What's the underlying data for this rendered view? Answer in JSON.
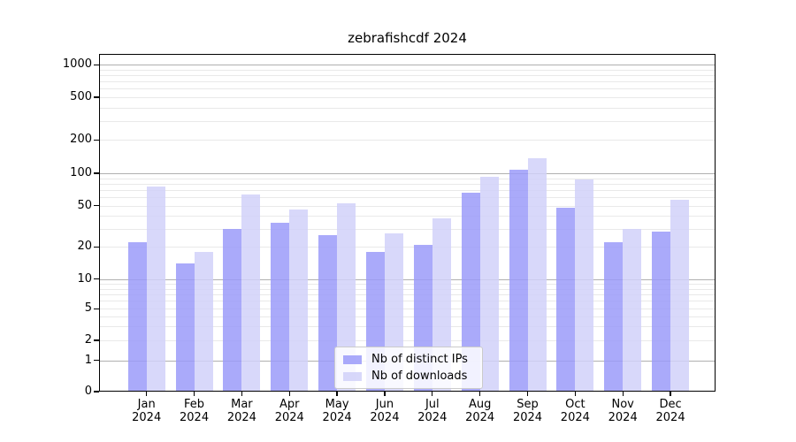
{
  "chart_data": {
    "type": "bar",
    "title": "zebrafishcdf 2024",
    "categories": [
      "Jan 2024",
      "Feb 2024",
      "Mar 2024",
      "Apr 2024",
      "May 2024",
      "Jun 2024",
      "Jul 2024",
      "Aug 2024",
      "Sep 2024",
      "Oct 2024",
      "Nov 2024",
      "Dec 2024"
    ],
    "series": [
      {
        "name": "Nb of distinct IPs",
        "color": "#9b9bf9",
        "values": [
          22,
          14,
          30,
          34,
          26,
          18,
          21,
          66,
          107,
          48,
          22,
          28
        ]
      },
      {
        "name": "Nb of downloads",
        "color": "#d1d1f9",
        "values": [
          76,
          18,
          63,
          46,
          53,
          27,
          38,
          93,
          136,
          88,
          30,
          57
        ]
      }
    ],
    "xlabel": "",
    "ylabel": "",
    "yticks": [
      0,
      1,
      2,
      5,
      10,
      20,
      50,
      100,
      200,
      500,
      1000
    ],
    "ylim": [
      0,
      1300
    ],
    "yscale": "symlog-like",
    "grid": "horizontal, major gray at 1/10/100/1000, light minors at 2-9 per decade",
    "legend_position": "inside bottom-center",
    "colors": {
      "major_grid": "#b0b0b0",
      "minor_grid": "#e9e9e9",
      "axis": "#000000"
    }
  }
}
